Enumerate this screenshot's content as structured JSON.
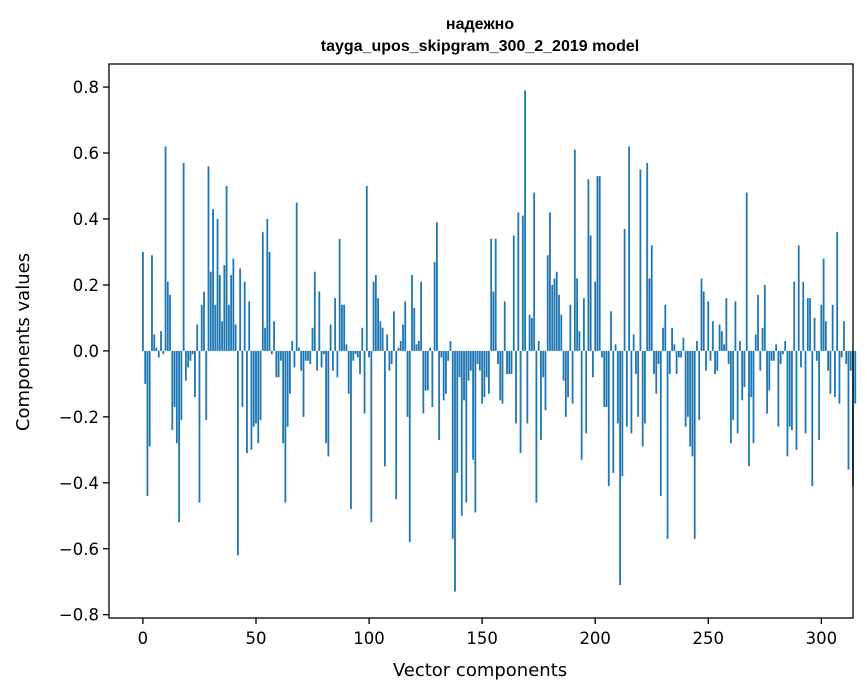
{
  "chart_data": {
    "type": "bar",
    "title": "надежно",
    "subtitle": "tayga_upos_skipgram_300_2_2019 model",
    "xlabel": "Vector components",
    "ylabel": "Components values",
    "xlim": [
      -15,
      314
    ],
    "ylim": [
      -0.81,
      0.87
    ],
    "xticks": [
      0,
      50,
      100,
      150,
      200,
      250,
      300
    ],
    "yticks": [
      -0.8,
      -0.6,
      -0.4,
      -0.2,
      0.0,
      0.2,
      0.4,
      0.6,
      0.8
    ],
    "ytick_labels": [
      "−0.8",
      "−0.6",
      "−0.4",
      "−0.2",
      "0.0",
      "0.2",
      "0.4",
      "0.6",
      "0.8"
    ],
    "grid": false,
    "bar_color": "#1f77b4",
    "values": [
      0.3,
      -0.1,
      -0.44,
      -0.29,
      0.29,
      0.05,
      0.01,
      -0.02,
      0.06,
      -0.01,
      0.62,
      0.21,
      0.17,
      -0.24,
      -0.17,
      -0.28,
      -0.52,
      -0.21,
      0.57,
      -0.09,
      -0.05,
      -0.03,
      -0.01,
      -0.14,
      0.08,
      -0.46,
      0.14,
      0.18,
      -0.21,
      0.56,
      0.24,
      0.43,
      0.14,
      0.4,
      0.23,
      0.09,
      0.26,
      0.5,
      0.14,
      0.23,
      0.28,
      0.08,
      -0.62,
      0.25,
      -0.17,
      0.21,
      -0.31,
      0.15,
      -0.3,
      -0.23,
      -0.22,
      -0.28,
      -0.21,
      0.36,
      0.07,
      0.4,
      0.3,
      -0.01,
      0.09,
      -0.08,
      -0.08,
      -0.03,
      -0.28,
      -0.46,
      -0.23,
      -0.13,
      0.03,
      -0.05,
      0.45,
      0.01,
      -0.06,
      -0.2,
      -0.03,
      -0.03,
      -0.04,
      0.07,
      0.24,
      -0.06,
      0.18,
      -0.05,
      -0.01,
      -0.28,
      -0.32,
      0.08,
      -0.06,
      0.16,
      -0.08,
      0.34,
      0.14,
      0.14,
      0.02,
      -0.13,
      -0.48,
      -0.03,
      -0.01,
      -0.02,
      -0.07,
      0.07,
      -0.19,
      0.5,
      -0.02,
      -0.52,
      0.21,
      0.23,
      0.16,
      0.09,
      0.07,
      -0.35,
      0.05,
      -0.06,
      -0.04,
      0.12,
      -0.45,
      0.01,
      0.03,
      0.08,
      0.15,
      -0.2,
      -0.58,
      0.23,
      0.13,
      0.02,
      0.03,
      0.21,
      -0.19,
      -0.12,
      -0.12,
      0.01,
      -0.17,
      0.27,
      0.39,
      -0.27,
      -0.02,
      -0.15,
      -0.13,
      -0.03,
      0.03,
      -0.57,
      -0.73,
      -0.37,
      -0.08,
      -0.5,
      -0.15,
      -0.46,
      -0.09,
      -0.06,
      -0.33,
      -0.49,
      -0.04,
      -0.06,
      -0.16,
      -0.14,
      -0.08,
      -0.13,
      0.34,
      0.18,
      0.34,
      -0.04,
      -0.15,
      -0.16,
      0.15,
      -0.07,
      -0.07,
      -0.07,
      0.35,
      -0.22,
      0.42,
      -0.31,
      0.41,
      0.79,
      -0.22,
      0.11,
      0.1,
      0.48,
      -0.46,
      0.03,
      -0.27,
      -0.08,
      -0.18,
      0.29,
      0.42,
      0.2,
      0.22,
      0.24,
      0.17,
      0.11,
      -0.09,
      -0.2,
      -0.14,
      0.14,
      -0.16,
      0.61,
      0.22,
      0.06,
      -0.33,
      0.16,
      -0.25,
      0.52,
      0.35,
      -0.08,
      0.21,
      0.53,
      0.53,
      -0.02,
      -0.17,
      -0.17,
      -0.41,
      0.12,
      -0.37,
      0.02,
      -0.22,
      -0.71,
      -0.38,
      0.37,
      -0.23,
      0.62,
      -0.25,
      0.05,
      -0.07,
      -0.2,
      0.55,
      -0.29,
      -0.22,
      0.57,
      0.22,
      0.32,
      -0.07,
      -0.13,
      -0.04,
      -0.44,
      0.07,
      0.14,
      -0.57,
      -0.07,
      0.07,
      0.02,
      -0.07,
      -0.02,
      -0.02,
      0.04,
      -0.23,
      -0.2,
      -0.29,
      -0.32,
      -0.57,
      0.03,
      -0.21,
      0.22,
      0.18,
      -0.06,
      0.15,
      -0.03,
      0.09,
      -0.07,
      -0.06,
      0.08,
      0.06,
      0.02,
      0.16,
      -0.04,
      -0.28,
      -0.21,
      0.15,
      -0.25,
      0.03,
      -0.15,
      -0.11,
      0.48,
      -0.35,
      -0.14,
      -0.28,
      0.05,
      0.17,
      -0.06,
      0.07,
      0.2,
      -0.19,
      -0.12,
      -0.03,
      -0.03,
      0.02,
      -0.23,
      -0.04,
      -0.01,
      0.03,
      -0.32,
      -0.23,
      -0.24,
      0.21,
      -0.3,
      0.32,
      -0.05,
      0.21,
      -0.25,
      0.16,
      0.16,
      -0.41,
      0.1,
      -0.03,
      -0.27,
      0.14,
      0.28,
      0.09,
      -0.06,
      -0.13,
      0.14,
      -0.14,
      0.36,
      -0.16,
      -0.02,
      0.09,
      -0.04,
      -0.36,
      -0.06,
      -0.41,
      -0.16
    ]
  }
}
